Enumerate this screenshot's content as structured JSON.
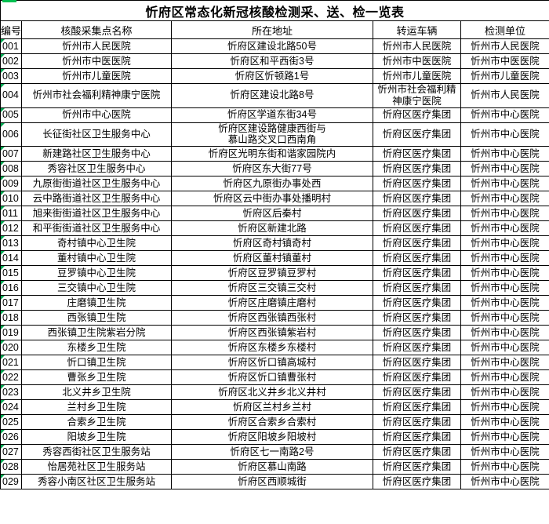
{
  "accent": {
    "indicator_green": "#00a650",
    "topbar_green": "#00c050"
  },
  "table": {
    "title": "忻府区常态化新冠核酸检测采、送、检一览表",
    "headers": {
      "id": "编号",
      "name": "核酸采集点名称",
      "address": "所在地址",
      "vehicle": "转运车辆",
      "unit": "检测单位"
    },
    "rows": [
      {
        "id": "001",
        "name": "忻州市人民医院",
        "address": "忻府区建设北路50号",
        "vehicle": "忻州市人民医院",
        "unit": "忻州市人民医院"
      },
      {
        "id": "002",
        "name": "忻州市中医医院",
        "address": "忻府区和平西街3号",
        "vehicle": "忻州市中医医院",
        "unit": "忻州市中医医院"
      },
      {
        "id": "003",
        "name": "忻州市儿童医院",
        "address": "忻府区忻顿路1号",
        "vehicle": "忻州市儿童医院",
        "unit": "忻州市儿童医院"
      },
      {
        "id": "004",
        "name": "忻州市社会福利精神康宁医院",
        "address": "忻府区建设北路8号",
        "vehicle": "忻州市社会福利精\n神康宁医院",
        "unit": "忻州市人民医院"
      },
      {
        "id": "005",
        "name": "忻州市中心医院",
        "address": "忻府区学道东街34号",
        "vehicle": "忻府区医疗集团",
        "unit": "忻州市中心医院"
      },
      {
        "id": "006",
        "name": "长征街社区卫生服务中心",
        "address": "忻府区建设路健康西街与\n慕山路交叉口西南角",
        "vehicle": "忻府区医疗集团",
        "unit": "忻州市中心医院"
      },
      {
        "id": "007",
        "name": "新建路社区卫生服务中心",
        "address": "忻府区光明东街和谐家园院内",
        "vehicle": "忻府区医疗集团",
        "unit": "忻州市中心医院"
      },
      {
        "id": "008",
        "name": "秀容社区卫生服务中心",
        "address": "忻府区东大街77号",
        "vehicle": "忻府区医疗集团",
        "unit": "忻州市中心医院"
      },
      {
        "id": "009",
        "name": "九原街街道社区卫生服务中心",
        "address": "忻府区九原街办事处西",
        "vehicle": "忻府区医疗集团",
        "unit": "忻州市中心医院"
      },
      {
        "id": "010",
        "name": "云中路街道社区卫生服务中心",
        "address": "忻府区云中街办事处播明村",
        "vehicle": "忻府区医疗集团",
        "unit": "忻州市中心医院"
      },
      {
        "id": "011",
        "name": "旭来街街道社区卫生服务中心",
        "address": "忻府区后秦村",
        "vehicle": "忻府区医疗集团",
        "unit": "忻州市中心医院"
      },
      {
        "id": "012",
        "name": "和平街街道社区卫生服务中心",
        "address": "忻府区新建北路",
        "vehicle": "忻府区医疗集团",
        "unit": "忻州市中心医院"
      },
      {
        "id": "013",
        "name": "奇村镇中心卫生院",
        "address": "忻府区奇村镇奇村",
        "vehicle": "忻府区医疗集团",
        "unit": "忻州市中心医院"
      },
      {
        "id": "014",
        "name": "董村镇中心卫生院",
        "address": "忻府区董村镇董村",
        "vehicle": "忻府区医疗集团",
        "unit": "忻州市中心医院"
      },
      {
        "id": "015",
        "name": "豆罗镇中心卫生院",
        "address": "忻府区豆罗镇豆罗村",
        "vehicle": "忻府区医疗集团",
        "unit": "忻州市中心医院"
      },
      {
        "id": "016",
        "name": "三交镇中心卫生院",
        "address": "忻府区三交镇三交村",
        "vehicle": "忻府区医疗集团",
        "unit": "忻州市中心医院"
      },
      {
        "id": "017",
        "name": "庄磨镇卫生院",
        "address": "忻府区庄磨镇庄磨村",
        "vehicle": "忻府区医疗集团",
        "unit": "忻州市中心医院"
      },
      {
        "id": "018",
        "name": "西张镇卫生院",
        "address": "忻府区西张镇西张村",
        "vehicle": "忻府区医疗集团",
        "unit": "忻州市中心医院"
      },
      {
        "id": "019",
        "name": "西张镇卫生院紫岩分院",
        "address": "忻府区西张镇紫岩村",
        "vehicle": "忻府区医疗集团",
        "unit": "忻州市中心医院"
      },
      {
        "id": "020",
        "name": "东楼乡卫生院",
        "address": "忻府区东楼乡东楼村",
        "vehicle": "忻府区医疗集团",
        "unit": "忻州市中心医院"
      },
      {
        "id": "021",
        "name": "忻口镇卫生院",
        "address": "忻府区忻口镇高城村",
        "vehicle": "忻府区医疗集团",
        "unit": "忻州市中心医院"
      },
      {
        "id": "022",
        "name": "曹张乡卫生院",
        "address": "忻府区忻口镇曹张村",
        "vehicle": "忻府区医疗集团",
        "unit": "忻州市中心医院"
      },
      {
        "id": "023",
        "name": "北义井乡卫生院",
        "address": "忻府区北义井乡北义井村",
        "vehicle": "忻府区医疗集团",
        "unit": "忻州市中心医院"
      },
      {
        "id": "024",
        "name": "兰村乡卫生院",
        "address": "忻府区兰村乡兰村",
        "vehicle": "忻府区医疗集团",
        "unit": "忻州市中心医院"
      },
      {
        "id": "025",
        "name": "合索乡卫生院",
        "address": "忻府区合索乡合索村",
        "vehicle": "忻府区医疗集团",
        "unit": "忻州市中心医院"
      },
      {
        "id": "026",
        "name": "阳坡乡卫生院",
        "address": "忻府区阳坡乡阳坡村",
        "vehicle": "忻府区医疗集团",
        "unit": "忻州市中心医院"
      },
      {
        "id": "027",
        "name": "秀容西街社区卫生服务站",
        "address": "忻府区七一南路2号",
        "vehicle": "忻府区医疗集团",
        "unit": "忻州市中心医院"
      },
      {
        "id": "028",
        "name": "怡居苑社区卫生服务站",
        "address": "忻府区慕山南路",
        "vehicle": "忻府区医疗集团",
        "unit": "忻州市中心医院"
      },
      {
        "id": "029",
        "name": "秀容小南区社区卫生服务站",
        "address": "忻府区西顺城街",
        "vehicle": "忻府区医疗集团",
        "unit": "忻州市中心医院"
      }
    ]
  }
}
